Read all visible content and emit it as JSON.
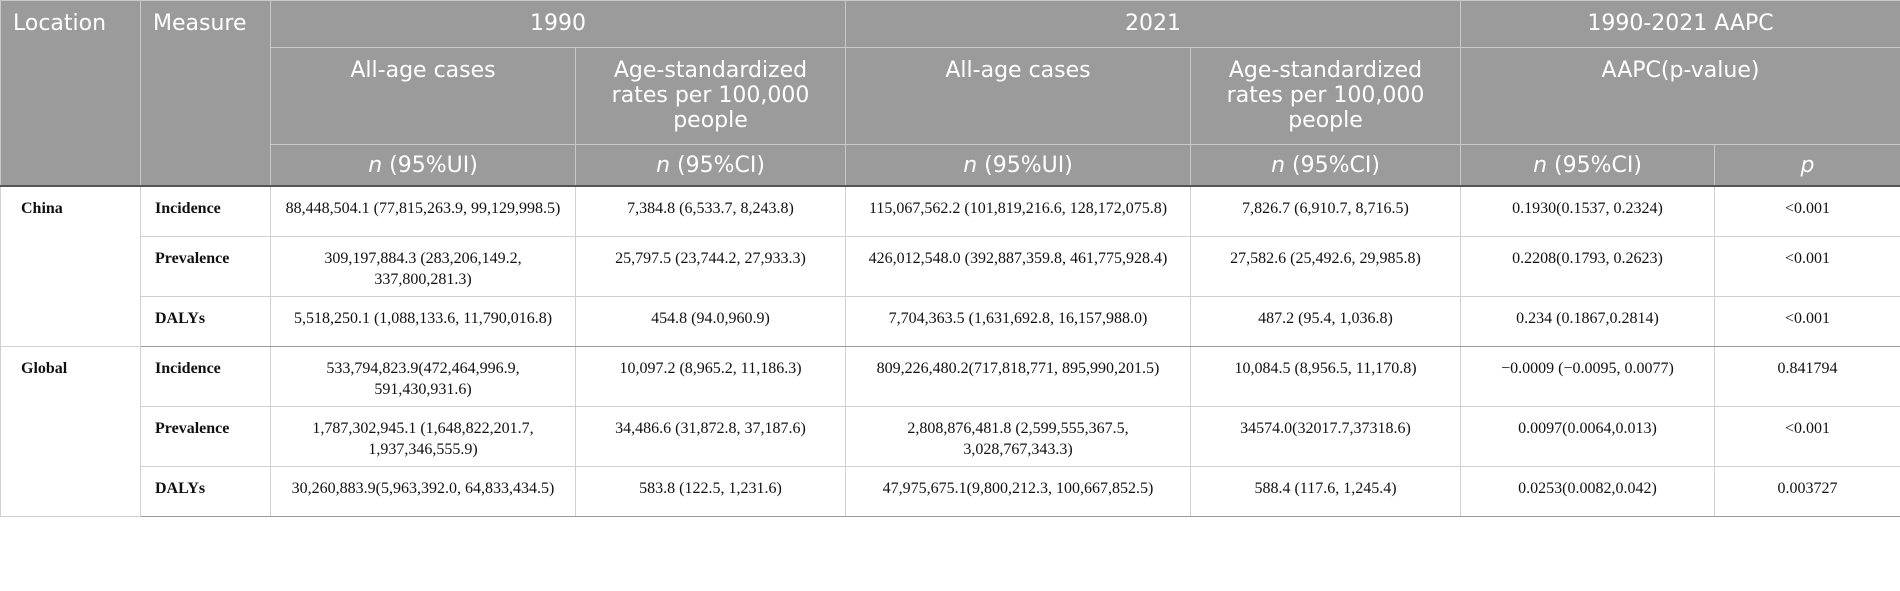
{
  "table": {
    "header": {
      "location": "Location",
      "measure": "Measure",
      "year1990": "1990",
      "year2021": "2021",
      "aapc_group": "1990-2021 AAPC",
      "all_age_cases": "All-age cases",
      "age_std_rates": "Age-standardized rates per 100,000 people",
      "aapc_pvalue": "AAPC(p-value)",
      "n95ui": "(95%UI)",
      "n95ci": "(95%CI)",
      "n_letter": "n",
      "p_letter": "p"
    },
    "rows": [
      {
        "location": "China",
        "measure": "Incidence",
        "c1990_cases": "88,448,504.1 (77,815,263.9, 99,129,998.5)",
        "c1990_rate": "7,384.8 (6,533.7, 8,243.8)",
        "c2021_cases": "115,067,562.2 (101,819,216.6, 128,172,075.8)",
        "c2021_rate": "7,826.7 (6,910.7, 8,716.5)",
        "aapc": "0.1930(0.1537, 0.2324)",
        "p": "<0.001"
      },
      {
        "location": "",
        "measure": "Prevalence",
        "c1990_cases": "309,197,884.3 (283,206,149.2, 337,800,281.3)",
        "c1990_rate": "25,797.5 (23,744.2, 27,933.3)",
        "c2021_cases": "426,012,548.0 (392,887,359.8, 461,775,928.4)",
        "c2021_rate": "27,582.6 (25,492.6, 29,985.8)",
        "aapc": "0.2208(0.1793, 0.2623)",
        "p": "<0.001"
      },
      {
        "location": "",
        "measure": "DALYs",
        "c1990_cases": "5,518,250.1 (1,088,133.6, 11,790,016.8)",
        "c1990_rate": "454.8 (94.0,960.9)",
        "c2021_cases": "7,704,363.5 (1,631,692.8, 16,157,988.0)",
        "c2021_rate": "487.2 (95.4, 1,036.8)",
        "aapc": "0.234 (0.1867,0.2814)",
        "p": "<0.001"
      },
      {
        "location": "Global",
        "measure": "Incidence",
        "c1990_cases": "533,794,823.9(472,464,996.9, 591,430,931.6)",
        "c1990_rate": "10,097.2 (8,965.2, 11,186.3)",
        "c2021_cases": "809,226,480.2(717,818,771, 895,990,201.5)",
        "c2021_rate": "10,084.5 (8,956.5, 11,170.8)",
        "aapc": "−0.0009 (−0.0095, 0.0077)",
        "p": "0.841794"
      },
      {
        "location": "",
        "measure": "Prevalence",
        "c1990_cases": "1,787,302,945.1 (1,648,822,201.7, 1,937,346,555.9)",
        "c1990_rate": "34,486.6 (31,872.8, 37,187.6)",
        "c2021_cases": "2,808,876,481.8 (2,599,555,367.5, 3,028,767,343.3)",
        "c2021_rate": "34574.0(32017.7,37318.6)",
        "aapc": "0.0097(0.0064,0.013)",
        "p": "<0.001"
      },
      {
        "location": "",
        "measure": "DALYs",
        "c1990_cases": "30,260,883.9(5,963,392.0, 64,833,434.5)",
        "c1990_rate": "583.8 (122.5, 1,231.6)",
        "c2021_cases": "47,975,675.1(9,800,212.3, 100,667,852.5)",
        "c2021_rate": "588.4 (117.6, 1,245.4)",
        "aapc": "0.0253(0.0082,0.042)",
        "p": "0.003727"
      }
    ]
  }
}
